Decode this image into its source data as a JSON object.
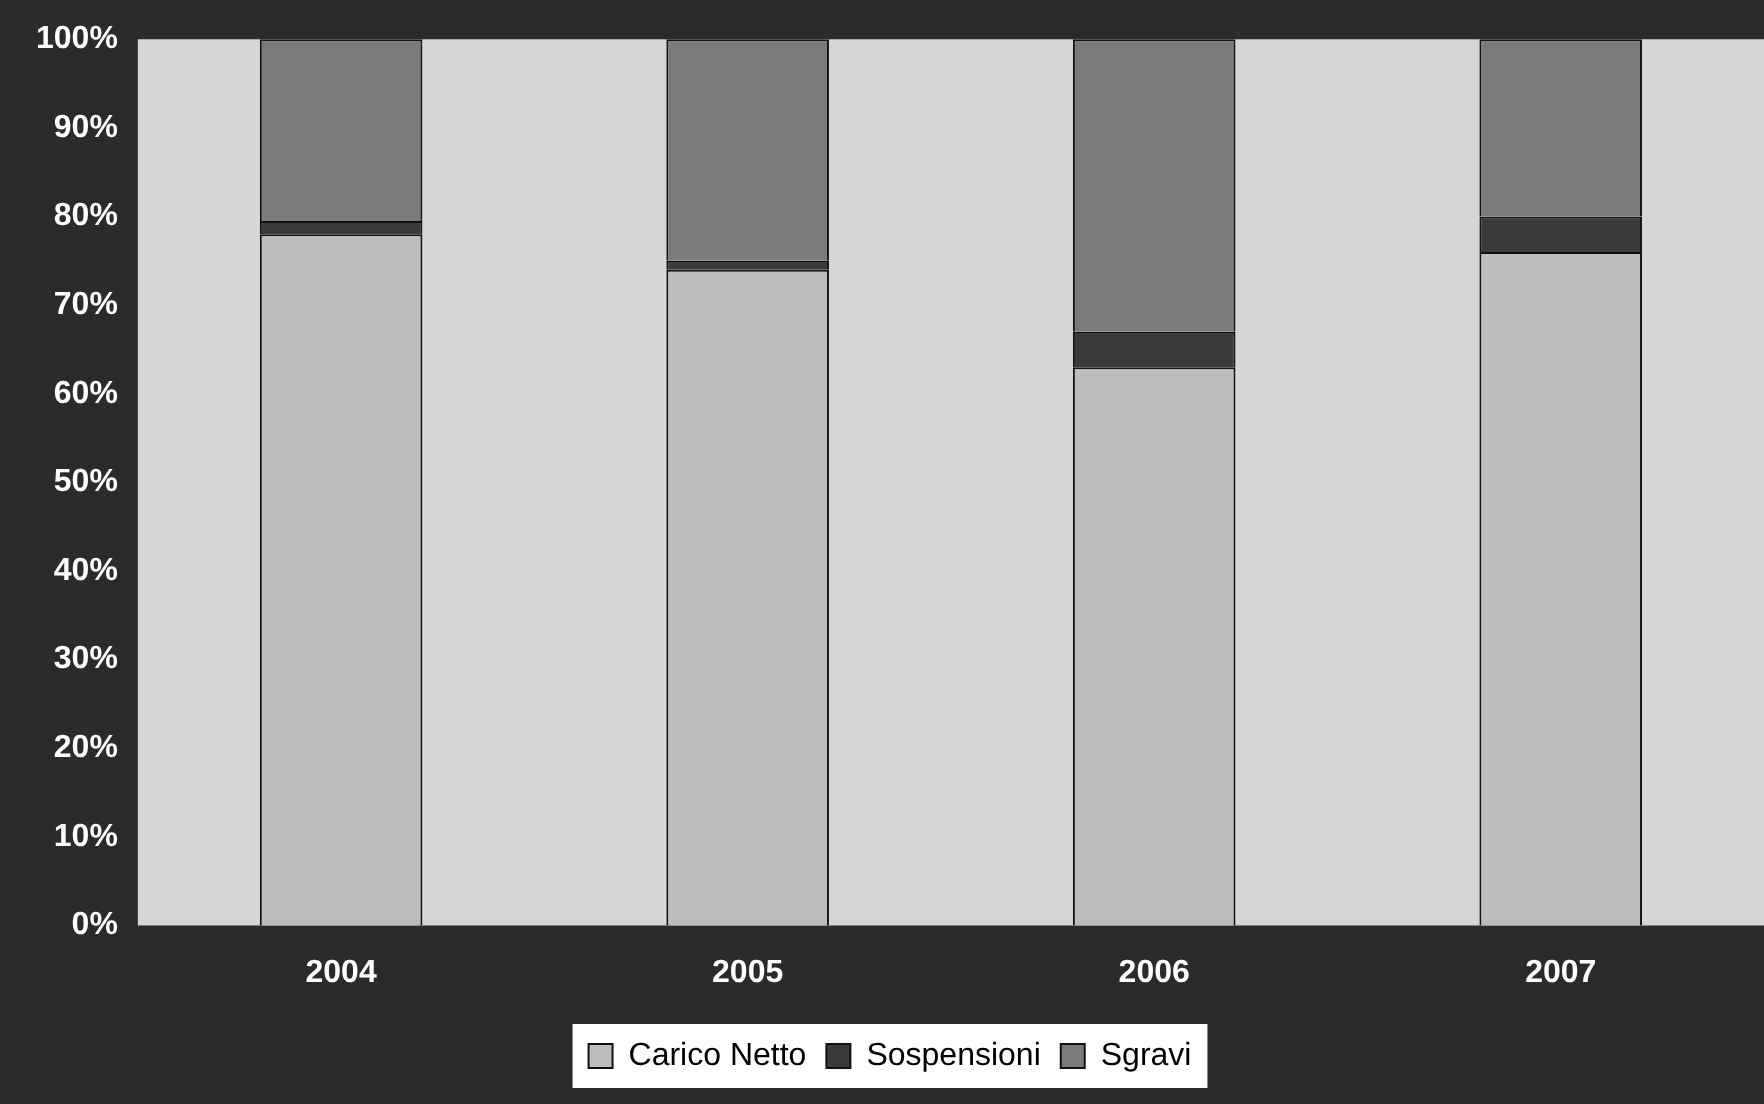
{
  "chart_data": {
    "type": "bar",
    "stacked": true,
    "categories": [
      "2004",
      "2005",
      "2006",
      "2007"
    ],
    "series": [
      {
        "name": "Carico Netto",
        "color": "#bdbdbd",
        "values": [
          78,
          74,
          63,
          76
        ]
      },
      {
        "name": "Sospensioni",
        "color": "#3a3a3a",
        "values": [
          1.5,
          1,
          4,
          4
        ]
      },
      {
        "name": "Sgravi",
        "color": "#7a7a7a",
        "values": [
          20.5,
          25,
          33,
          20
        ]
      }
    ],
    "ylim": [
      0,
      100
    ],
    "yticks": [
      {
        "value": 0,
        "label": "0%"
      },
      {
        "value": 10,
        "label": "10%"
      },
      {
        "value": 20,
        "label": "20%"
      },
      {
        "value": 30,
        "label": "30%"
      },
      {
        "value": 40,
        "label": "40%"
      },
      {
        "value": 50,
        "label": "50%"
      },
      {
        "value": 60,
        "label": "60%"
      },
      {
        "value": 70,
        "label": "70%"
      },
      {
        "value": 80,
        "label": "80%"
      },
      {
        "value": 90,
        "label": "90%"
      },
      {
        "value": 100,
        "label": "100%"
      }
    ],
    "grid": false,
    "legend": "bottom"
  }
}
